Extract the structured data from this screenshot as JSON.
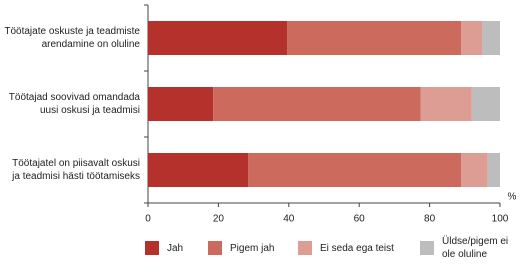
{
  "chart_data": {
    "type": "stacked-barh",
    "categories": [
      "Töötajate oskuste ja teadmiste arendamine on oluline",
      "Töötajad soovivad omandada uusi oskusi ja teadmisi",
      "Töötajatel on piisavalt oskusi ja teadmisi hästi töötamiseks"
    ],
    "series": [
      {
        "name": "Jah",
        "color": "#b5312b",
        "values": [
          39.5,
          18.5,
          28.5
        ]
      },
      {
        "name": "Pigem jah",
        "color": "#cd6a5e",
        "values": [
          49.5,
          59,
          60.5
        ]
      },
      {
        "name": "Ei seda ega teist",
        "color": "#dd9c94",
        "values": [
          6,
          14.5,
          7.5
        ]
      },
      {
        "name": "Üldse/pigem ei ole oluline",
        "color": "#bdbdbd",
        "values": [
          5,
          8,
          3.5
        ]
      }
    ],
    "x_label": "%",
    "xlim": [
      0,
      100
    ],
    "xticks": [
      0,
      20,
      40,
      60,
      80,
      100
    ]
  }
}
